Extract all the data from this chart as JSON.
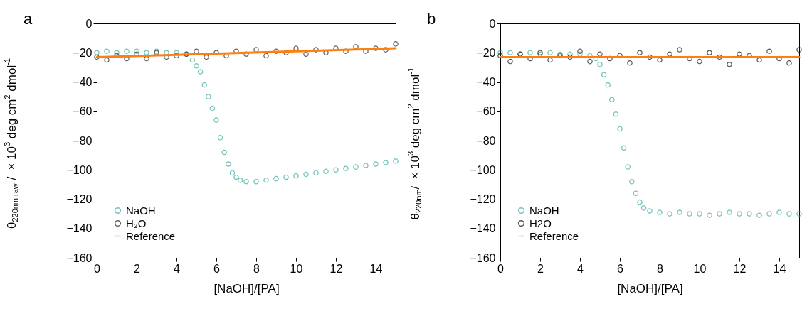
{
  "chart_data": [
    {
      "type": "scatter",
      "title": "a",
      "xlabel": "[NaOH]/[PA]",
      "ylabel": "θ$_{220nm,raw}$ / ×10$^{3}$ deg cm$^{2}$ dmol$^{-1}$",
      "xlim": [
        0,
        15
      ],
      "xticks": [
        0,
        2,
        4,
        6,
        8,
        10,
        12,
        14
      ],
      "ylim": [
        -160,
        0
      ],
      "yticks": [
        -160,
        -140,
        -120,
        -100,
        -80,
        -60,
        -40,
        -20,
        0
      ],
      "grid": false,
      "legend": "bottom left",
      "series": [
        {
          "name": "NaOH",
          "color": "#3aa89f",
          "marker": "circle",
          "x": [
            0,
            0.5,
            1,
            1.5,
            2,
            2.5,
            3,
            3.5,
            4,
            4.5,
            4.8,
            5.0,
            5.2,
            5.4,
            5.6,
            5.8,
            6.0,
            6.2,
            6.4,
            6.6,
            6.8,
            7.0,
            7.2,
            7.5,
            8,
            8.5,
            9,
            9.5,
            10,
            10.5,
            11,
            11.5,
            12,
            12.5,
            13,
            13.5,
            14,
            14.5,
            15
          ],
          "values": [
            -20,
            -19,
            -20,
            -19,
            -19,
            -20,
            -19,
            -20,
            -20,
            -21,
            -25,
            -29,
            -33,
            -42,
            -50,
            -58,
            -66,
            -78,
            -88,
            -96,
            -102,
            -105,
            -107,
            -108,
            -108,
            -107,
            -106,
            -105,
            -104,
            -103,
            -102,
            -101,
            -100,
            -99,
            -98,
            -97,
            -96,
            -95,
            -94
          ]
        },
        {
          "name": "H₂O",
          "color": "#222222",
          "marker": "circle",
          "x": [
            0,
            0.5,
            1,
            1.5,
            2,
            2.5,
            3,
            3.5,
            4,
            4.5,
            5,
            5.5,
            6,
            6.5,
            7,
            7.5,
            8,
            8.5,
            9,
            9.5,
            10,
            10.5,
            11,
            11.5,
            12,
            12.5,
            13,
            13.5,
            14,
            14.5,
            15
          ],
          "values": [
            -23,
            -25,
            -22,
            -24,
            -21,
            -24,
            -20,
            -23,
            -22,
            -21,
            -19,
            -23,
            -20,
            -22,
            -19,
            -21,
            -18,
            -22,
            -19,
            -20,
            -17,
            -21,
            -18,
            -20,
            -17,
            -19,
            -16,
            -19,
            -17,
            -18,
            -14
          ]
        },
        {
          "name": "Reference",
          "type": "line",
          "color": "#ff7f0e",
          "x": [
            0,
            15
          ],
          "values": [
            -23,
            -17
          ]
        }
      ]
    },
    {
      "type": "scatter",
      "title": "b",
      "xlabel": "[NaOH]/[PA]",
      "ylabel": "θ$_{220nm}$/ ×10$^{3}$ deg cm$^{2}$ dmol$^{-1}$",
      "xlim": [
        0,
        15
      ],
      "xticks": [
        0,
        2,
        4,
        6,
        8,
        10,
        12,
        14
      ],
      "ylim": [
        -160,
        0
      ],
      "yticks": [
        -160,
        -140,
        -120,
        -100,
        -80,
        -60,
        -40,
        -20,
        0
      ],
      "grid": false,
      "legend": "bottom left",
      "series": [
        {
          "name": "NaOH",
          "color": "#3aa89f",
          "marker": "circle",
          "x": [
            0,
            0.5,
            1,
            1.5,
            2,
            2.5,
            3,
            3.5,
            4,
            4.5,
            4.8,
            5.0,
            5.2,
            5.4,
            5.6,
            5.8,
            6.0,
            6.2,
            6.4,
            6.6,
            6.8,
            7.0,
            7.2,
            7.5,
            8,
            8.5,
            9,
            9.5,
            10,
            10.5,
            11,
            11.5,
            12,
            12.5,
            13,
            13.5,
            14,
            14.5,
            15
          ],
          "values": [
            -20,
            -20,
            -21,
            -20,
            -21,
            -20,
            -21,
            -21,
            -21,
            -22,
            -24,
            -28,
            -35,
            -42,
            -52,
            -62,
            -72,
            -85,
            -98,
            -108,
            -116,
            -122,
            -126,
            -128,
            -129,
            -130,
            -129,
            -130,
            -130,
            -131,
            -130,
            -129,
            -130,
            -130,
            -131,
            -130,
            -129,
            -130,
            -130
          ]
        },
        {
          "name": "H2O",
          "color": "#111111",
          "marker": "circle",
          "x": [
            0,
            0.5,
            1,
            1.5,
            2,
            2.5,
            3,
            3.5,
            4,
            4.5,
            5,
            5.5,
            6,
            6.5,
            7,
            7.5,
            8,
            8.5,
            9,
            9.5,
            10,
            10.5,
            11,
            11.5,
            12,
            12.5,
            13,
            13.5,
            14,
            14.5,
            15
          ],
          "values": [
            -22,
            -26,
            -21,
            -24,
            -20,
            -25,
            -22,
            -23,
            -19,
            -26,
            -21,
            -24,
            -22,
            -27,
            -20,
            -23,
            -25,
            -21,
            -18,
            -24,
            -26,
            -20,
            -23,
            -28,
            -21,
            -22,
            -25,
            -19,
            -24,
            -27,
            -18
          ]
        },
        {
          "name": "Reference",
          "type": "line",
          "color": "#ff7f0e",
          "x": [
            0,
            15
          ],
          "values": [
            -23,
            -23
          ]
        }
      ]
    }
  ]
}
